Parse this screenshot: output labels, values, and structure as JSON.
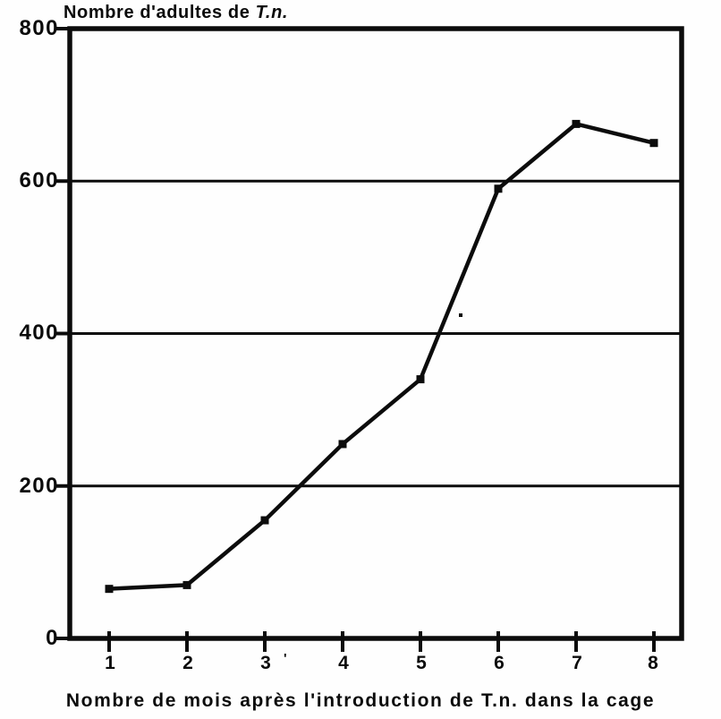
{
  "figure": {
    "title_prefix": "Nombre d'adultes de ",
    "title_italic": "T.n.",
    "stray_mark": "'"
  },
  "chart_data": {
    "type": "line",
    "title": "Nombre d'adultes de T.n.",
    "xlabel": "Nombre de mois après l'introduction de T.n. dans la cage",
    "ylabel": "",
    "x": [
      1,
      2,
      3,
      4,
      5,
      6,
      7,
      8
    ],
    "values": [
      65,
      70,
      155,
      255,
      340,
      590,
      675,
      650
    ],
    "x_ticks": [
      1,
      2,
      3,
      4,
      5,
      6,
      7,
      8
    ],
    "y_ticks": [
      0,
      200,
      400,
      600,
      800
    ],
    "ylim": [
      0,
      800
    ],
    "xlim": [
      0.5,
      8.35
    ],
    "grid": "horizontal gridlines at 200, 400, 600",
    "legend": "none",
    "marker": "filled-square",
    "line_color": "#0c0c0c",
    "background_color": "#fefefe"
  }
}
